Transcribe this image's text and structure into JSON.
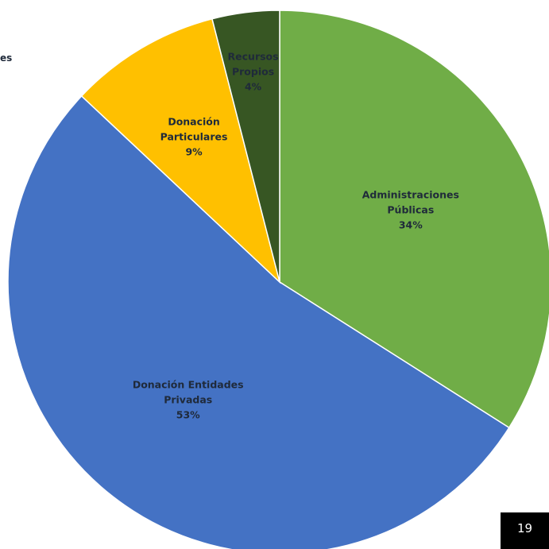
{
  "chart_data": {
    "type": "pie",
    "title": "",
    "start": "top",
    "direction": "clockwise",
    "slices": [
      {
        "label_lines": [
          "Administraciones",
          "Públicas",
          "34%"
        ],
        "value": 34,
        "color": "#70ad47"
      },
      {
        "label_lines": [
          "Donación Entidades",
          "Privadas",
          "53%"
        ],
        "value": 53,
        "color": "#4472c4"
      },
      {
        "label_lines": [
          "Donación",
          "Particulares",
          "9%"
        ],
        "value": 9,
        "color": "#ffc000"
      },
      {
        "label_lines": [
          "Recursos",
          "Propios",
          "4%"
        ],
        "value": 4,
        "color": "#375623"
      }
    ]
  },
  "edge_text": "es",
  "page_number": "19"
}
